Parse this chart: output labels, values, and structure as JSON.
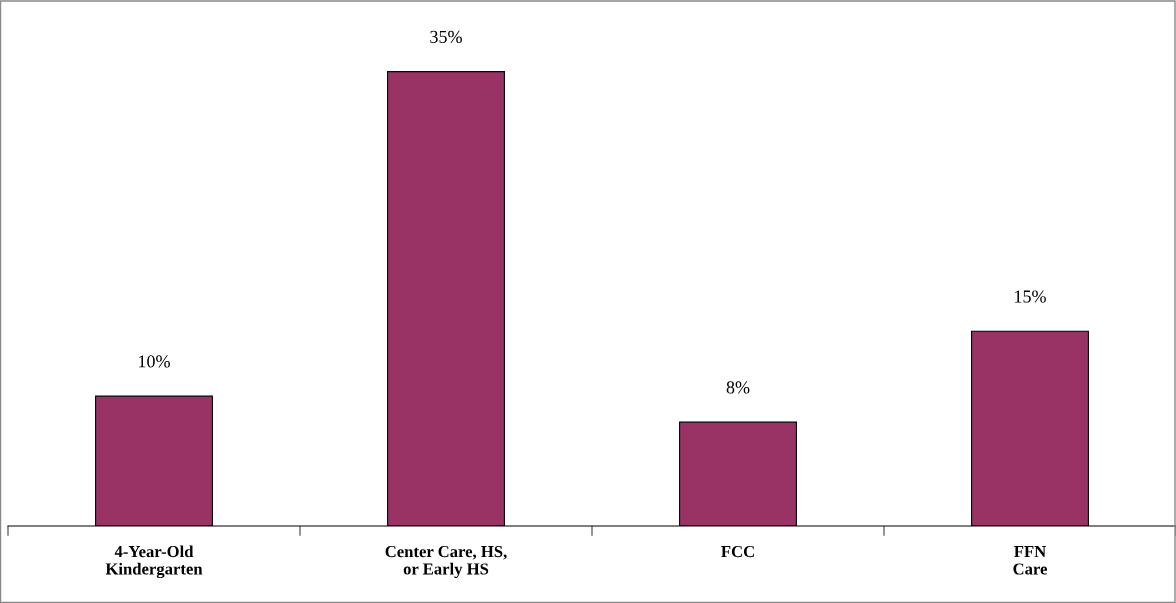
{
  "chart_data": {
    "type": "bar",
    "categories": [
      "4-Year-Old\nKindergarten",
      "Center Care, HS,\nor Early HS",
      "FCC",
      "FFN\nCare"
    ],
    "values": [
      10,
      35,
      8,
      15
    ],
    "value_labels": [
      "10%",
      "35%",
      "8%",
      "15%"
    ],
    "color": "#993366",
    "grid": false,
    "legend": false
  }
}
